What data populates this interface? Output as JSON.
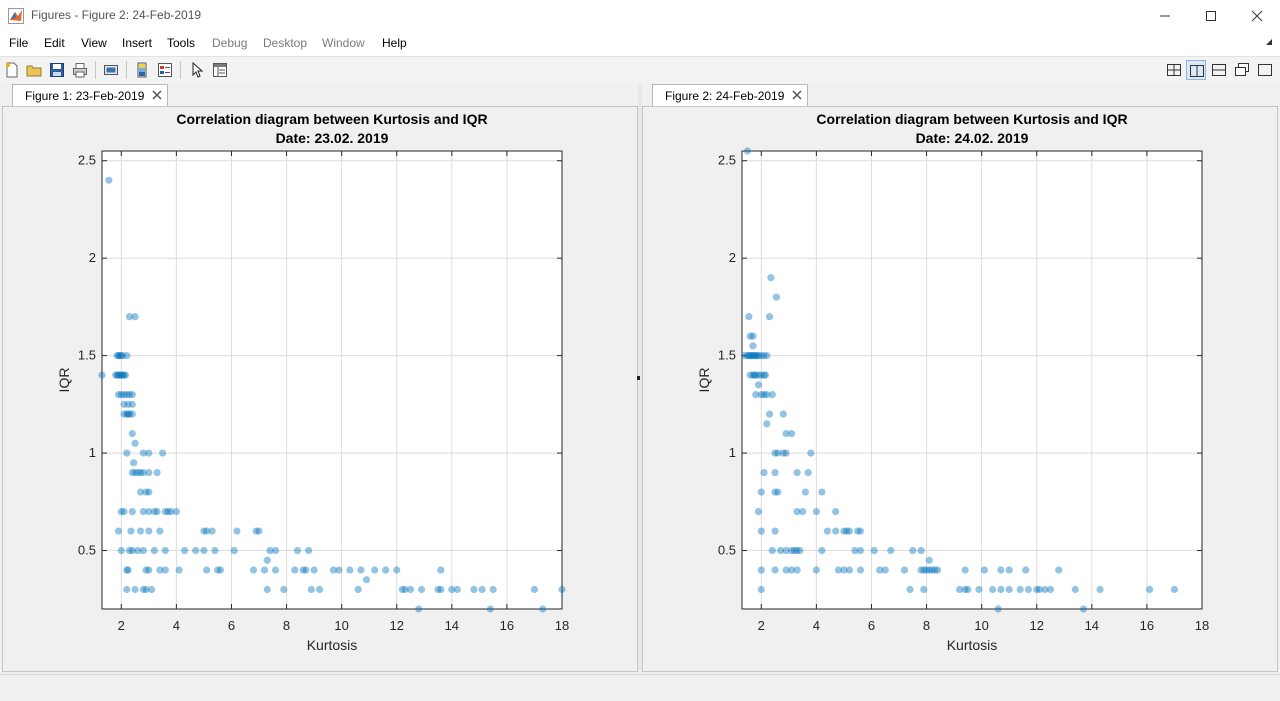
{
  "window": {
    "title": "Figures - Figure 2: 24-Feb-2019"
  },
  "menu": [
    "File",
    "Edit",
    "View",
    "Insert",
    "Tools",
    "Debug",
    "Desktop",
    "Window",
    "Help"
  ],
  "menu_disabled": [
    "Debug",
    "Desktop",
    "Window"
  ],
  "tabs": [
    {
      "label": "Figure 1: 23-Feb-2019"
    },
    {
      "label": "Figure 2: 24-Feb-2019"
    }
  ],
  "colors": {
    "marker": "#0072bd",
    "accent": "#0072bd"
  },
  "chart_data": [
    {
      "type": "scatter",
      "title": "Correlation diagram between Kurtosis and IQR",
      "subtitle": "Date: 23.02. 2019",
      "xlabel": "Kurtosis",
      "ylabel": "IQR",
      "xlim": [
        1.3,
        18
      ],
      "ylim": [
        0.2,
        2.55
      ],
      "xticks": [
        2,
        4,
        6,
        8,
        10,
        12,
        14,
        16,
        18
      ],
      "yticks": [
        0.5,
        1,
        1.5,
        2,
        2.5
      ],
      "grid": true,
      "points": [
        [
          1.3,
          1.4
        ],
        [
          1.55,
          2.4
        ],
        [
          1.85,
          1.5
        ],
        [
          1.9,
          1.5
        ],
        [
          1.95,
          1.5
        ],
        [
          2.0,
          1.5
        ],
        [
          2.05,
          1.5
        ],
        [
          2.2,
          1.5
        ],
        [
          1.8,
          1.4
        ],
        [
          1.85,
          1.4
        ],
        [
          1.9,
          1.4
        ],
        [
          1.95,
          1.4
        ],
        [
          2.0,
          1.4
        ],
        [
          2.05,
          1.4
        ],
        [
          2.1,
          1.4
        ],
        [
          2.15,
          1.4
        ],
        [
          1.9,
          1.3
        ],
        [
          2.0,
          1.3
        ],
        [
          2.1,
          1.3
        ],
        [
          2.2,
          1.3
        ],
        [
          2.3,
          1.3
        ],
        [
          2.4,
          1.3
        ],
        [
          2.3,
          1.7
        ],
        [
          2.5,
          1.7
        ],
        [
          2.1,
          1.25
        ],
        [
          2.25,
          1.25
        ],
        [
          2.4,
          1.25
        ],
        [
          2.1,
          1.2
        ],
        [
          2.2,
          1.2
        ],
        [
          2.25,
          1.2
        ],
        [
          2.3,
          1.2
        ],
        [
          2.4,
          1.2
        ],
        [
          2.4,
          1.1
        ],
        [
          2.5,
          1.05
        ],
        [
          2.2,
          1.0
        ],
        [
          2.8,
          1.0
        ],
        [
          3.0,
          1.0
        ],
        [
          3.5,
          1.0
        ],
        [
          2.45,
          0.95
        ],
        [
          2.7,
          0.8
        ],
        [
          2.9,
          0.8
        ],
        [
          3.0,
          0.8
        ],
        [
          2.4,
          0.9
        ],
        [
          2.5,
          0.9
        ],
        [
          2.6,
          0.9
        ],
        [
          2.7,
          0.9
        ],
        [
          2.8,
          0.9
        ],
        [
          3.0,
          0.9
        ],
        [
          3.3,
          0.9
        ],
        [
          2.0,
          0.7
        ],
        [
          2.1,
          0.7
        ],
        [
          2.4,
          0.7
        ],
        [
          2.8,
          0.7
        ],
        [
          3.0,
          0.7
        ],
        [
          3.2,
          0.7
        ],
        [
          3.3,
          0.7
        ],
        [
          3.6,
          0.7
        ],
        [
          3.7,
          0.7
        ],
        [
          3.8,
          0.7
        ],
        [
          4.0,
          0.7
        ],
        [
          1.9,
          0.6
        ],
        [
          2.35,
          0.6
        ],
        [
          2.7,
          0.6
        ],
        [
          3.0,
          0.6
        ],
        [
          3.4,
          0.6
        ],
        [
          5.0,
          0.6
        ],
        [
          5.1,
          0.6
        ],
        [
          5.3,
          0.6
        ],
        [
          6.2,
          0.6
        ],
        [
          6.9,
          0.6
        ],
        [
          7.0,
          0.6
        ],
        [
          2.0,
          0.5
        ],
        [
          2.3,
          0.5
        ],
        [
          2.4,
          0.5
        ],
        [
          2.6,
          0.5
        ],
        [
          2.8,
          0.5
        ],
        [
          3.2,
          0.5
        ],
        [
          3.6,
          0.5
        ],
        [
          4.3,
          0.5
        ],
        [
          4.7,
          0.5
        ],
        [
          5.0,
          0.5
        ],
        [
          5.4,
          0.5
        ],
        [
          6.1,
          0.5
        ],
        [
          7.4,
          0.5
        ],
        [
          7.6,
          0.5
        ],
        [
          8.4,
          0.5
        ],
        [
          8.8,
          0.5
        ],
        [
          7.3,
          0.45
        ],
        [
          2.2,
          0.4
        ],
        [
          2.25,
          0.4
        ],
        [
          2.9,
          0.4
        ],
        [
          3.0,
          0.4
        ],
        [
          3.4,
          0.4
        ],
        [
          3.6,
          0.4
        ],
        [
          4.1,
          0.4
        ],
        [
          5.1,
          0.4
        ],
        [
          5.5,
          0.4
        ],
        [
          5.6,
          0.4
        ],
        [
          6.8,
          0.4
        ],
        [
          7.2,
          0.4
        ],
        [
          7.6,
          0.4
        ],
        [
          8.3,
          0.4
        ],
        [
          8.6,
          0.4
        ],
        [
          8.7,
          0.4
        ],
        [
          9.0,
          0.4
        ],
        [
          9.7,
          0.4
        ],
        [
          9.9,
          0.4
        ],
        [
          10.3,
          0.4
        ],
        [
          10.7,
          0.4
        ],
        [
          11.2,
          0.4
        ],
        [
          11.6,
          0.4
        ],
        [
          12.0,
          0.4
        ],
        [
          13.6,
          0.4
        ],
        [
          10.9,
          0.35
        ],
        [
          2.2,
          0.3
        ],
        [
          2.5,
          0.3
        ],
        [
          2.8,
          0.3
        ],
        [
          2.9,
          0.3
        ],
        [
          3.1,
          0.3
        ],
        [
          7.3,
          0.3
        ],
        [
          7.9,
          0.3
        ],
        [
          8.9,
          0.3
        ],
        [
          9.2,
          0.3
        ],
        [
          10.6,
          0.3
        ],
        [
          12.2,
          0.3
        ],
        [
          12.3,
          0.3
        ],
        [
          12.5,
          0.3
        ],
        [
          12.9,
          0.3
        ],
        [
          13.5,
          0.3
        ],
        [
          13.6,
          0.3
        ],
        [
          14.0,
          0.3
        ],
        [
          14.2,
          0.3
        ],
        [
          14.8,
          0.3
        ],
        [
          15.1,
          0.3
        ],
        [
          15.5,
          0.3
        ],
        [
          17.0,
          0.3
        ],
        [
          18.0,
          0.3
        ],
        [
          12.8,
          0.2
        ],
        [
          15.4,
          0.2
        ],
        [
          17.3,
          0.2
        ]
      ]
    },
    {
      "type": "scatter",
      "title": "Correlation diagram between Kurtosis and IQR",
      "subtitle": "Date: 24.02. 2019",
      "xlabel": "Kurtosis",
      "ylabel": "IQR",
      "xlim": [
        1.3,
        18
      ],
      "ylim": [
        0.2,
        2.55
      ],
      "xticks": [
        2,
        4,
        6,
        8,
        10,
        12,
        14,
        16,
        18
      ],
      "yticks": [
        0.5,
        1,
        1.5,
        2,
        2.5
      ],
      "grid": true,
      "points": [
        [
          1.5,
          2.55
        ],
        [
          2.35,
          1.9
        ],
        [
          2.55,
          1.8
        ],
        [
          1.55,
          1.7
        ],
        [
          2.3,
          1.7
        ],
        [
          1.6,
          1.6
        ],
        [
          1.7,
          1.6
        ],
        [
          1.7,
          1.55
        ],
        [
          1.4,
          1.5
        ],
        [
          1.5,
          1.5
        ],
        [
          1.55,
          1.5
        ],
        [
          1.6,
          1.5
        ],
        [
          1.65,
          1.5
        ],
        [
          1.7,
          1.5
        ],
        [
          1.75,
          1.5
        ],
        [
          1.8,
          1.5
        ],
        [
          1.85,
          1.5
        ],
        [
          1.9,
          1.5
        ],
        [
          2.0,
          1.5
        ],
        [
          2.1,
          1.5
        ],
        [
          2.2,
          1.5
        ],
        [
          1.6,
          1.4
        ],
        [
          1.7,
          1.4
        ],
        [
          1.75,
          1.4
        ],
        [
          1.8,
          1.4
        ],
        [
          1.9,
          1.4
        ],
        [
          2.0,
          1.4
        ],
        [
          2.1,
          1.4
        ],
        [
          2.15,
          1.4
        ],
        [
          1.9,
          1.35
        ],
        [
          1.8,
          1.3
        ],
        [
          2.0,
          1.3
        ],
        [
          2.1,
          1.3
        ],
        [
          2.2,
          1.3
        ],
        [
          2.4,
          1.3
        ],
        [
          2.3,
          1.2
        ],
        [
          2.8,
          1.2
        ],
        [
          2.2,
          1.15
        ],
        [
          2.9,
          1.1
        ],
        [
          3.1,
          1.1
        ],
        [
          2.5,
          1.0
        ],
        [
          2.6,
          1.0
        ],
        [
          2.8,
          1.0
        ],
        [
          2.9,
          1.0
        ],
        [
          3.8,
          1.0
        ],
        [
          2.1,
          0.9
        ],
        [
          2.5,
          0.9
        ],
        [
          3.3,
          0.9
        ],
        [
          3.7,
          0.9
        ],
        [
          2.0,
          0.8
        ],
        [
          2.5,
          0.8
        ],
        [
          2.6,
          0.8
        ],
        [
          3.6,
          0.8
        ],
        [
          4.2,
          0.8
        ],
        [
          1.9,
          0.7
        ],
        [
          3.3,
          0.7
        ],
        [
          3.5,
          0.7
        ],
        [
          4.0,
          0.7
        ],
        [
          4.7,
          0.7
        ],
        [
          2.0,
          0.6
        ],
        [
          2.5,
          0.6
        ],
        [
          4.4,
          0.6
        ],
        [
          4.7,
          0.6
        ],
        [
          5.0,
          0.6
        ],
        [
          5.1,
          0.6
        ],
        [
          5.2,
          0.6
        ],
        [
          5.5,
          0.6
        ],
        [
          5.6,
          0.6
        ],
        [
          2.4,
          0.5
        ],
        [
          2.7,
          0.5
        ],
        [
          2.9,
          0.5
        ],
        [
          3.1,
          0.5
        ],
        [
          3.2,
          0.5
        ],
        [
          3.3,
          0.5
        ],
        [
          3.4,
          0.5
        ],
        [
          4.2,
          0.5
        ],
        [
          5.4,
          0.5
        ],
        [
          5.6,
          0.5
        ],
        [
          6.1,
          0.5
        ],
        [
          6.7,
          0.5
        ],
        [
          7.5,
          0.5
        ],
        [
          7.8,
          0.5
        ],
        [
          8.1,
          0.45
        ],
        [
          2.0,
          0.4
        ],
        [
          2.5,
          0.4
        ],
        [
          2.9,
          0.4
        ],
        [
          3.1,
          0.4
        ],
        [
          3.3,
          0.4
        ],
        [
          4.0,
          0.4
        ],
        [
          4.8,
          0.4
        ],
        [
          5.0,
          0.4
        ],
        [
          5.2,
          0.4
        ],
        [
          5.6,
          0.4
        ],
        [
          6.3,
          0.4
        ],
        [
          6.5,
          0.4
        ],
        [
          7.2,
          0.4
        ],
        [
          7.8,
          0.4
        ],
        [
          7.9,
          0.4
        ],
        [
          8.0,
          0.4
        ],
        [
          8.1,
          0.4
        ],
        [
          8.2,
          0.4
        ],
        [
          8.3,
          0.4
        ],
        [
          8.4,
          0.4
        ],
        [
          9.4,
          0.4
        ],
        [
          10.1,
          0.4
        ],
        [
          10.7,
          0.4
        ],
        [
          11.0,
          0.4
        ],
        [
          11.6,
          0.4
        ],
        [
          12.8,
          0.4
        ],
        [
          2.0,
          0.3
        ],
        [
          7.4,
          0.3
        ],
        [
          7.9,
          0.3
        ],
        [
          9.2,
          0.3
        ],
        [
          9.4,
          0.3
        ],
        [
          9.5,
          0.3
        ],
        [
          9.9,
          0.3
        ],
        [
          10.4,
          0.3
        ],
        [
          10.7,
          0.3
        ],
        [
          11.0,
          0.3
        ],
        [
          11.4,
          0.3
        ],
        [
          11.7,
          0.3
        ],
        [
          12.0,
          0.3
        ],
        [
          12.1,
          0.3
        ],
        [
          12.3,
          0.3
        ],
        [
          12.5,
          0.3
        ],
        [
          13.4,
          0.3
        ],
        [
          14.3,
          0.3
        ],
        [
          16.1,
          0.3
        ],
        [
          17.0,
          0.3
        ],
        [
          10.6,
          0.2
        ],
        [
          13.7,
          0.2
        ]
      ]
    }
  ]
}
